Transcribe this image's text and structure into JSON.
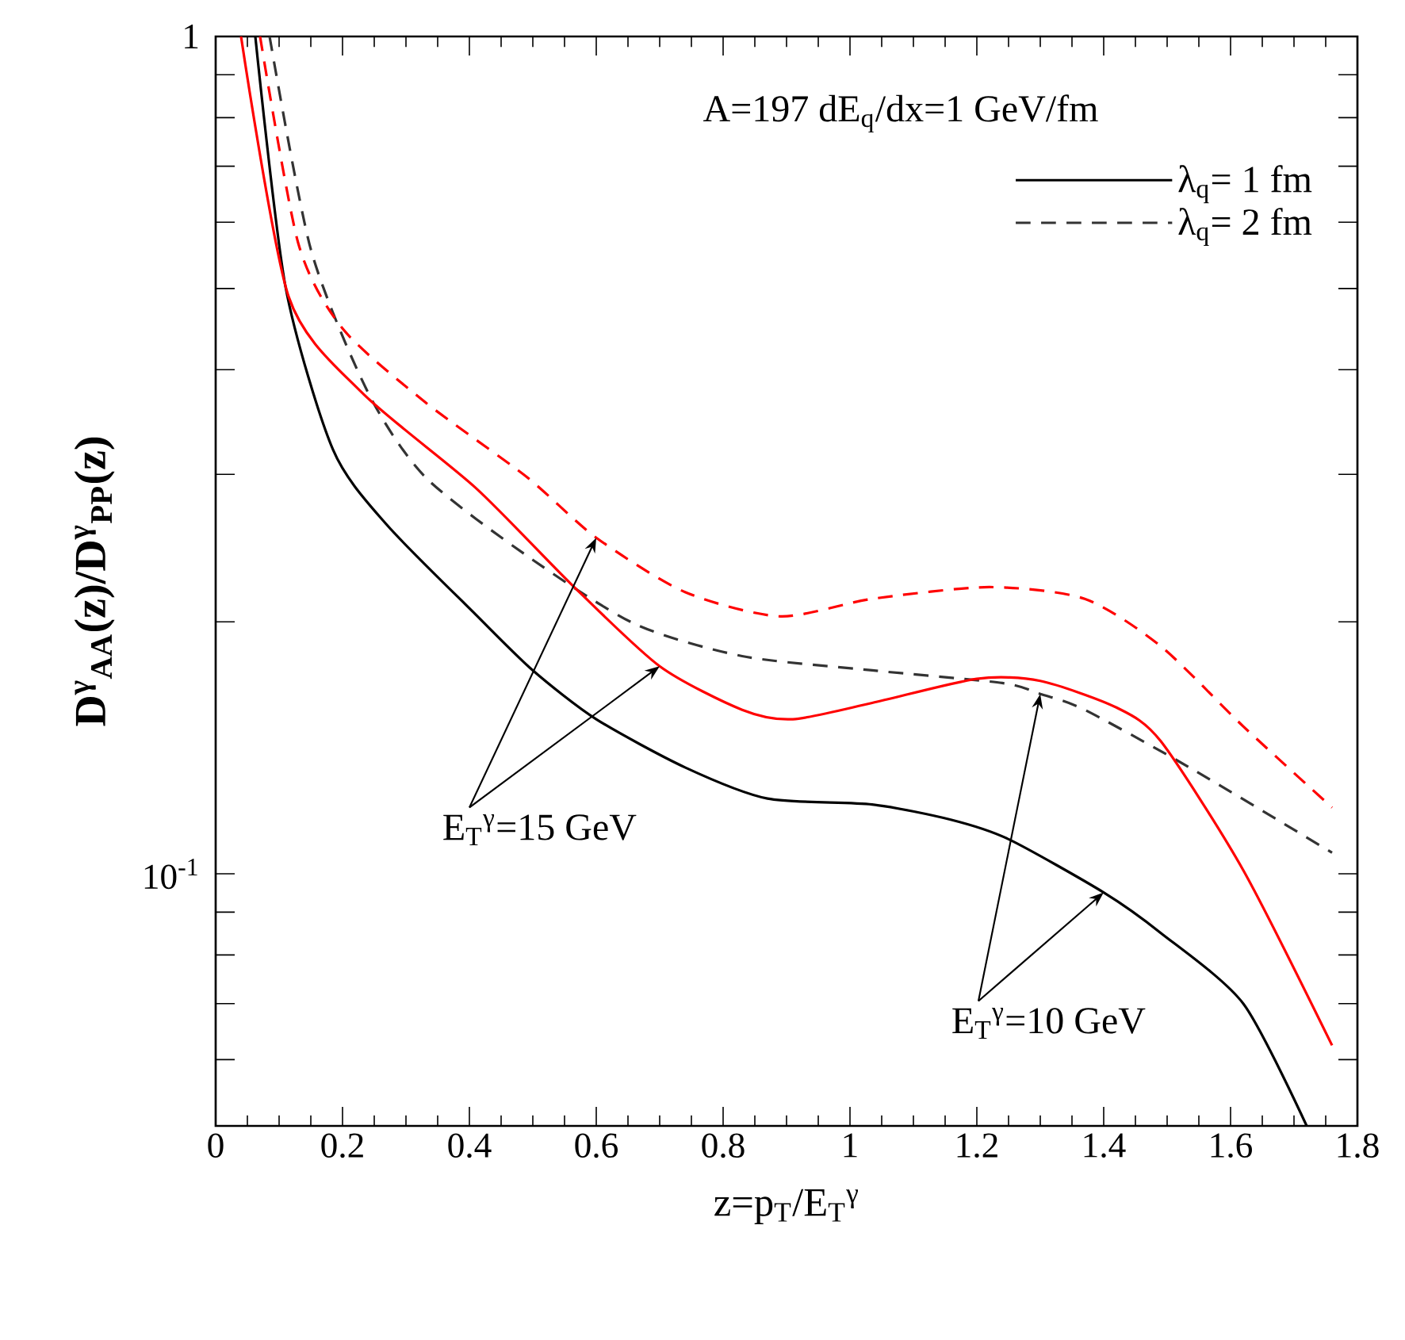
{
  "chart_data": {
    "type": "line",
    "legend_title": "A=197  dE$_{q}$/dx=1 GeV/fm",
    "xlabel": "z=p$_{T}$/E$_{T}$$^{γ}$",
    "ylabel": "D$^{γ}$$_{AA}$(z)/D$^{γ}$$_{PP}$(z)",
    "xlim": [
      0,
      1.8
    ],
    "ylim": [
      0.05,
      1
    ],
    "log": "y",
    "legend": "top right",
    "xticks": [
      0,
      0.2,
      0.4,
      0.6,
      0.8,
      1,
      1.2,
      1.4,
      1.6,
      1.8
    ],
    "yticks": [
      {
        "value": 0.05,
        "label": null
      },
      {
        "value": 0.06,
        "label": null
      },
      {
        "value": 0.07,
        "label": null
      },
      {
        "value": 0.08,
        "label": null
      },
      {
        "value": 0.09,
        "label": null
      },
      {
        "value": 0.1,
        "label": "10$^{-1}$"
      },
      {
        "value": 0.2,
        "label": null
      },
      {
        "value": 0.3,
        "label": null
      },
      {
        "value": 0.4,
        "label": null
      },
      {
        "value": 0.5,
        "label": null
      },
      {
        "value": 0.6,
        "label": null
      },
      {
        "value": 0.7,
        "label": null
      },
      {
        "value": 0.8,
        "label": null
      },
      {
        "value": 0.9,
        "label": null
      },
      {
        "value": 1,
        "label": "1"
      }
    ],
    "annotations": [
      {
        "text": "E$_{T}$$^{γ}$=15 GeV",
        "x": 0.6,
        "y": 0.252
      },
      {
        "text": "E$_{T}$$^{γ}$=10 GeV",
        "x": 1.3,
        "y": 0.164
      }
    ],
    "series": [
      {
        "name": "λ$_{q}$= 1 fm",
        "color": "#000000",
        "line_style": "solid",
        "x": [
          0.0625,
          0.11,
          0.185,
          0.27,
          0.41,
          0.5,
          0.6,
          0.74,
          0.87,
          1.035,
          1.16,
          1.25,
          1.4,
          1.49,
          1.62,
          1.72
        ],
        "values": [
          1,
          0.503,
          0.321,
          0.261,
          0.204,
          0.175,
          0.153,
          0.134,
          0.123,
          0.121,
          0.116,
          0.11,
          0.095,
          0.085,
          0.07,
          0.05
        ]
      },
      {
        "name": "λ$_{q}$= 2 fm",
        "color": "#333333",
        "line_style": "dashed",
        "x": [
          0.085,
          0.15,
          0.24,
          0.33,
          0.49,
          0.66,
          0.83,
          1.035,
          1.24,
          1.3,
          1.37,
          1.535,
          1.76
        ],
        "values": [
          1,
          0.557,
          0.376,
          0.298,
          0.24,
          0.199,
          0.182,
          0.175,
          0.169,
          0.164,
          0.157,
          0.134,
          0.106
        ]
      },
      {
        "color": "#ff0000",
        "line_style": "solid",
        "x": [
          0.04,
          0.115,
          0.23,
          0.41,
          0.56,
          0.7,
          0.83,
          0.91,
          1.035,
          1.2,
          1.3,
          1.42,
          1.49,
          1.62,
          1.76
        ],
        "values": [
          1,
          0.489,
          0.376,
          0.289,
          0.222,
          0.177,
          0.157,
          0.153,
          0.16,
          0.171,
          0.17,
          0.158,
          0.144,
          0.101,
          0.0624
        ]
      },
      {
        "color": "#ff0000",
        "line_style": "dashed",
        "x": [
          0.07,
          0.13,
          0.2,
          0.33,
          0.49,
          0.6,
          0.74,
          0.89,
          1.035,
          1.22,
          1.37,
          1.49,
          1.62,
          1.76
        ],
        "values": [
          1,
          0.567,
          0.448,
          0.366,
          0.298,
          0.252,
          0.217,
          0.203,
          0.213,
          0.22,
          0.213,
          0.187,
          0.15,
          0.12
        ]
      }
    ]
  }
}
